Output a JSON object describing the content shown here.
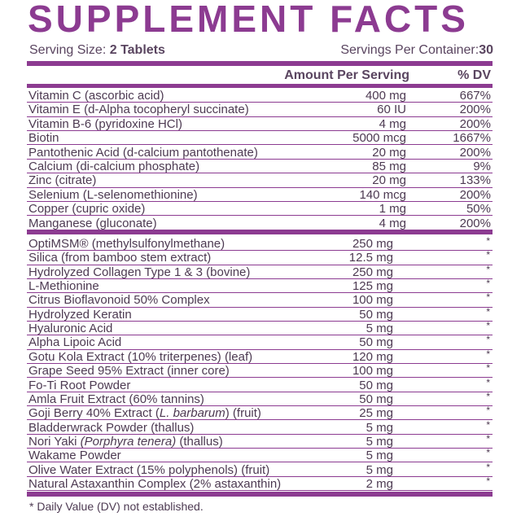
{
  "header": {
    "title": "SUPPLEMENT FACTS",
    "serving_size_label": "Serving Size:",
    "serving_size_value": "2 Tablets",
    "servings_label": "Servings Per Container:",
    "servings_value": "30",
    "amount_header": "Amount Per Serving",
    "dv_header": "% DV"
  },
  "vitamins": [
    [
      "Vitamin C (ascorbic acid)",
      "400 mg",
      "667%"
    ],
    [
      "Vitamin E (d-Alpha tocopheryl succinate)",
      "60 IU",
      "200%"
    ],
    [
      "Vitamin B-6 (pyridoxine HCl)",
      "4 mg",
      "200%"
    ],
    [
      "Biotin",
      "5000 mcg",
      "1667%"
    ],
    [
      "Pantothenic Acid (d-calcium pantothenate)",
      "20 mg",
      "200%"
    ],
    [
      "Calcium (di-calcium phosphate)",
      "85 mg",
      "9%"
    ],
    [
      "Zinc (citrate)",
      "20 mg",
      "133%"
    ],
    [
      "Selenium (L-selenomethionine)",
      "140 mcg",
      "200%"
    ],
    [
      "Copper (cupric oxide)",
      "1 mg",
      "50%"
    ],
    [
      "Manganese (gluconate)",
      "4 mg",
      "200%"
    ]
  ],
  "others": [
    {
      "name": [
        "OptiMSM® (methylsulfonylmethane)"
      ],
      "amount": "250 mg",
      "dv": "*"
    },
    {
      "name": [
        "Silica (from bamboo stem extract)"
      ],
      "amount": "12.5 mg",
      "dv": "*"
    },
    {
      "name": [
        "Hydrolyzed Collagen Type 1 & 3 (bovine)"
      ],
      "amount": "250 mg",
      "dv": "*"
    },
    {
      "name": [
        "L-Methionine"
      ],
      "amount": "125 mg",
      "dv": "*"
    },
    {
      "name": [
        "Citrus Bioflavonoid 50% Complex"
      ],
      "amount": "100 mg",
      "dv": "*"
    },
    {
      "name": [
        "Hydrolyzed Keratin"
      ],
      "amount": "50 mg",
      "dv": "*"
    },
    {
      "name": [
        "Hyaluronic Acid"
      ],
      "amount": "5 mg",
      "dv": "*"
    },
    {
      "name": [
        "Alpha Lipoic Acid"
      ],
      "amount": "50 mg",
      "dv": "*"
    },
    {
      "name": [
        "Gotu Kola Extract (10% triterpenes) (leaf)"
      ],
      "amount": "120 mg",
      "dv": "*"
    },
    {
      "name": [
        "Grape Seed 95% Extract (inner core)"
      ],
      "amount": "100 mg",
      "dv": "*"
    },
    {
      "name": [
        "Fo-Ti Root Powder"
      ],
      "amount": "50 mg",
      "dv": "*"
    },
    {
      "name": [
        "Amla Fruit Extract (60% tannins)"
      ],
      "amount": "50 mg",
      "dv": "*"
    },
    {
      "name": [
        "Goji Berry 40% Extract (",
        {
          "text": "L. barbarum",
          "italic": true
        },
        ") (fruit)"
      ],
      "amount": "25 mg",
      "dv": "*"
    },
    {
      "name": [
        "Bladderwrack Powder (thallus)"
      ],
      "amount": "5 mg",
      "dv": "*"
    },
    {
      "name": [
        "Nori Yaki ",
        {
          "text": "(Porphyra tenera)",
          "italic": true
        },
        " (thallus)"
      ],
      "amount": "5 mg",
      "dv": "*"
    },
    {
      "name": [
        "Wakame Powder"
      ],
      "amount": "5 mg",
      "dv": "*"
    },
    {
      "name": [
        "Olive Water Extract (15% polyphenols) (fruit)"
      ],
      "amount": "5 mg",
      "dv": "*"
    },
    {
      "name": [
        "Natural Astaxanthin Complex (2% astaxanthin)"
      ],
      "amount": "2 mg",
      "dv": "*"
    }
  ],
  "footnote": "* Daily Value (DV) not established."
}
